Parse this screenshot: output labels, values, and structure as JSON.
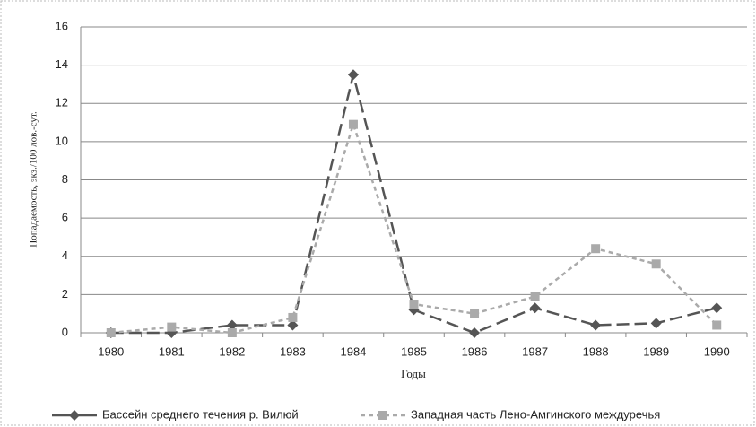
{
  "chart_data": {
    "type": "line",
    "x_label": "Годы",
    "y_label": "Попадаемость, экз./100 лов.-сут.",
    "categories": [
      "1980",
      "1981",
      "1982",
      "1983",
      "1984",
      "1985",
      "1986",
      "1987",
      "1988",
      "1989",
      "1990"
    ],
    "series": [
      {
        "name": "Бассейн среднего течения  р. Вилюй",
        "color": "#555555",
        "values": [
          0,
          0,
          0.4,
          0.4,
          13.5,
          1.2,
          0,
          1.3,
          0.4,
          0.5,
          1.3
        ]
      },
      {
        "name": "Западная часть Лено-Амгинского междуречья",
        "color": "#aaaaaa",
        "values": [
          0,
          0.3,
          0,
          0.8,
          10.9,
          1.5,
          1.0,
          1.9,
          4.4,
          3.6,
          0.4
        ]
      }
    ],
    "ylim": [
      0,
      16
    ],
    "yticks": [
      0,
      2,
      4,
      6,
      8,
      10,
      12,
      14,
      16
    ],
    "grid": true
  }
}
